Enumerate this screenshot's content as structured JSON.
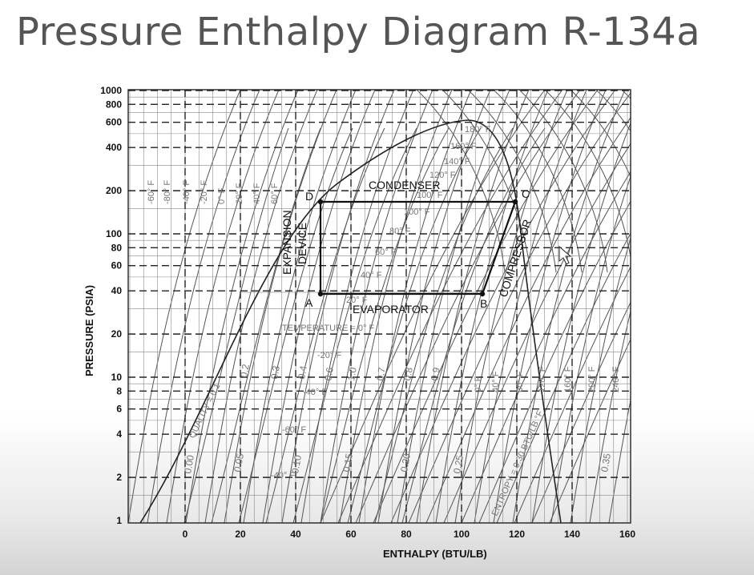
{
  "slide": {
    "title": "Pressure Enthalpy Diagram R-134a"
  },
  "diagram": {
    "x_axis": {
      "label": "ENTHALPY (BTU/LB)",
      "ticks": [
        "0",
        "20",
        "40",
        "60",
        "80",
        "100",
        "120",
        "140",
        "160"
      ]
    },
    "y_axis": {
      "label": "PRESSURE (PSIA)",
      "ticks": [
        "1000",
        "800",
        "600",
        "400",
        "200",
        "100",
        "80",
        "60",
        "40",
        "20",
        "10",
        "8",
        "6",
        "4",
        "2",
        "1"
      ]
    },
    "points": {
      "a": "A",
      "b": "B",
      "c": "C",
      "d": "D"
    },
    "components": {
      "condenser": "CONDENSER",
      "evaporator": "EVAPORATOR",
      "compressor": "COMPRESSOR",
      "expansion_line1": "EXPANSION",
      "expansion_line2": "DEVICE"
    },
    "annotations": {
      "temp_label": "TEMPERATURE = 0° F",
      "quality_label": "QUALITY = 0.1",
      "entropy_label": "ENTROPY = 0.30 BTU/LB °F",
      "t_160": "160° F",
      "t_120": "120° F",
      "t_100": "100° F",
      "t_80": "80° F",
      "t_60": "60° F",
      "t_40": "40° F",
      "t_20": "20° F",
      "t_m20": "-20° F",
      "t_m40": "-40° F",
      "t_m60": "-60° F",
      "t_180": "180° F",
      "t_140": "140° F",
      "ql_02": "0.2",
      "ql_03": "0.3",
      "ql_04": "0.4",
      "ql_06": "0.6",
      "ql_07": "0.7",
      "ql_08": "0.8",
      "ql_09": "0.9",
      "ql_10": "1.0",
      "en_000": "0.00",
      "en_005": "0.05",
      "en_010": "0.10",
      "en_015": "0.15",
      "en_020": "0.20",
      "en_025": "0.25",
      "en_035": "0.35",
      "vl_1": "-60° F",
      "vl_2": "-80° F",
      "vl_3": "-40° F",
      "vl_4": "-20° F",
      "vl_5": "0° F",
      "vl_6": "20° F",
      "vl_7": "40° F",
      "vl_8": "60° F",
      "vt_1": "0° F",
      "vt_2": "40° F",
      "vt_3": "80° F",
      "vt_4": "120° F",
      "vt_5": "160° F",
      "vt_6": "200° F",
      "vt_7": "240° F"
    },
    "colors": {
      "lines": "#555555",
      "grid": "#222222",
      "cycle": "#111111"
    }
  }
}
